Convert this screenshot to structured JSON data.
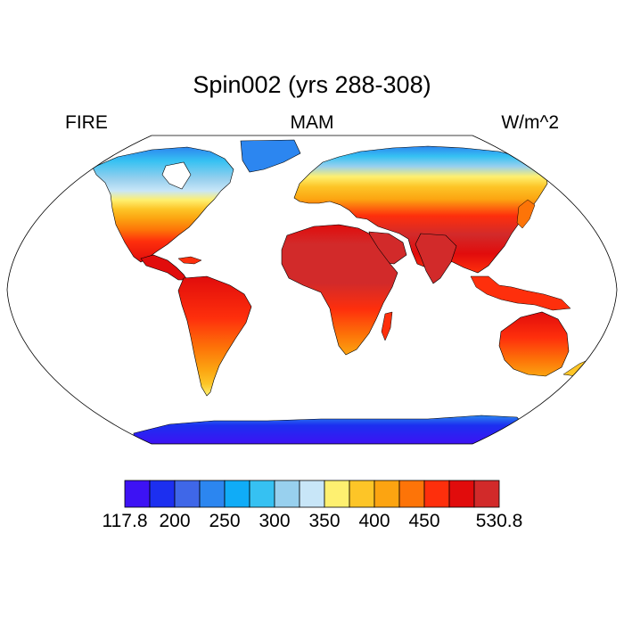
{
  "title": "Spin002 (yrs 288-308)",
  "left_string": "FIRE",
  "center_string": "MAM",
  "right_string": "W/m^2",
  "colorbar": {
    "colors": [
      "#3d12f4",
      "#1c2ff0",
      "#3f67e8",
      "#2c86f0",
      "#10acf7",
      "#36c1f2",
      "#98d0ee",
      "#c8e6f8",
      "#fef070",
      "#fdc527",
      "#fca411",
      "#fd7408",
      "#fe2f0c",
      "#e10c0c",
      "#d22a2a"
    ],
    "labels": [
      {
        "text": "117.8",
        "boundary": 0
      },
      {
        "text": "200",
        "boundary": 2
      },
      {
        "text": "250",
        "boundary": 4
      },
      {
        "text": "300",
        "boundary": 6
      },
      {
        "text": "350",
        "boundary": 8
      },
      {
        "text": "400",
        "boundary": 10
      },
      {
        "text": "450",
        "boundary": 12
      },
      {
        "text": "530.8",
        "boundary": 15
      }
    ]
  }
}
